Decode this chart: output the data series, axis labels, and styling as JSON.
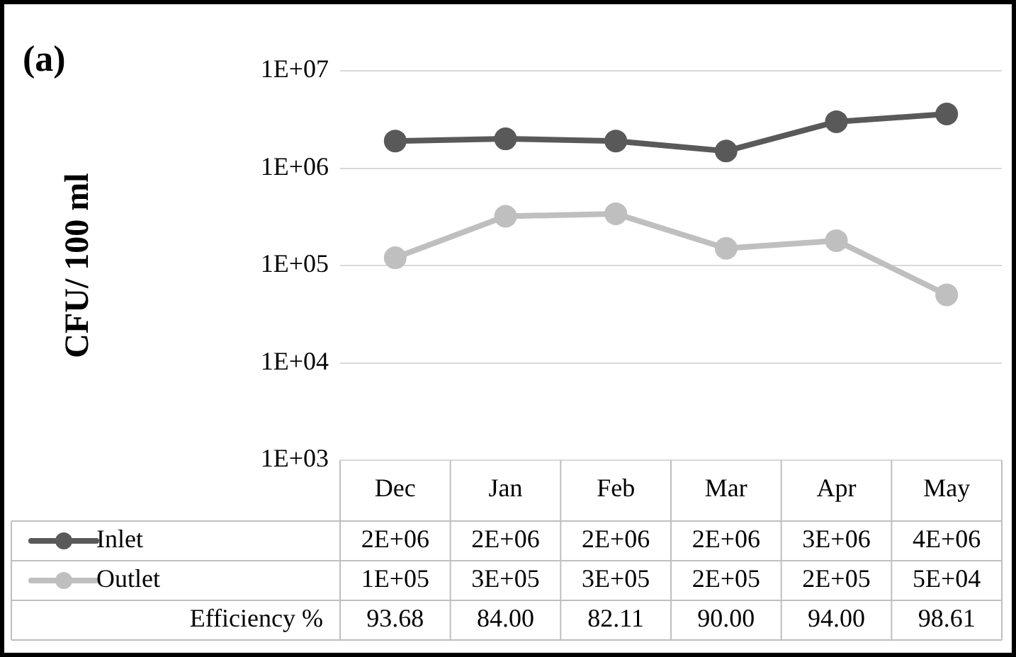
{
  "chart_data": {
    "type": "line",
    "title": "(a)",
    "ylabel": "CFU/ 100 ml",
    "categories": [
      "Dec",
      "Jan",
      "Feb",
      "Mar",
      "Apr",
      "May"
    ],
    "series": [
      {
        "name": "Inlet",
        "color": "#595959",
        "values": [
          1900000,
          2000000,
          1900000,
          1500000,
          3000000,
          3600000
        ],
        "value_labels": [
          "2E+06",
          "2E+06",
          "2E+06",
          "2E+06",
          "3E+06",
          "4E+06"
        ]
      },
      {
        "name": "Outlet",
        "color": "#bfbfbf",
        "values": [
          120000,
          320000,
          340000,
          150000,
          180000,
          50000
        ],
        "value_labels": [
          "1E+05",
          "3E+05",
          "3E+05",
          "2E+05",
          "2E+05",
          "5E+04"
        ]
      }
    ],
    "annotations": [
      "Efficiency %",
      "93.68",
      "84.00",
      "82.11",
      "90.00",
      "94.00",
      "98.61"
    ],
    "log": "y",
    "ylim": [
      1000,
      10000000
    ],
    "yticks": [
      {
        "value": 1000,
        "label": "1E+03"
      },
      {
        "value": 10000,
        "label": "1E+04"
      },
      {
        "value": 100000,
        "label": "1E+05"
      },
      {
        "value": 1000000,
        "label": "1E+06"
      },
      {
        "value": 10000000,
        "label": "1E+07"
      }
    ],
    "grid": "y",
    "legend": "bottom left",
    "marker": "circle",
    "line_style": "solid"
  }
}
